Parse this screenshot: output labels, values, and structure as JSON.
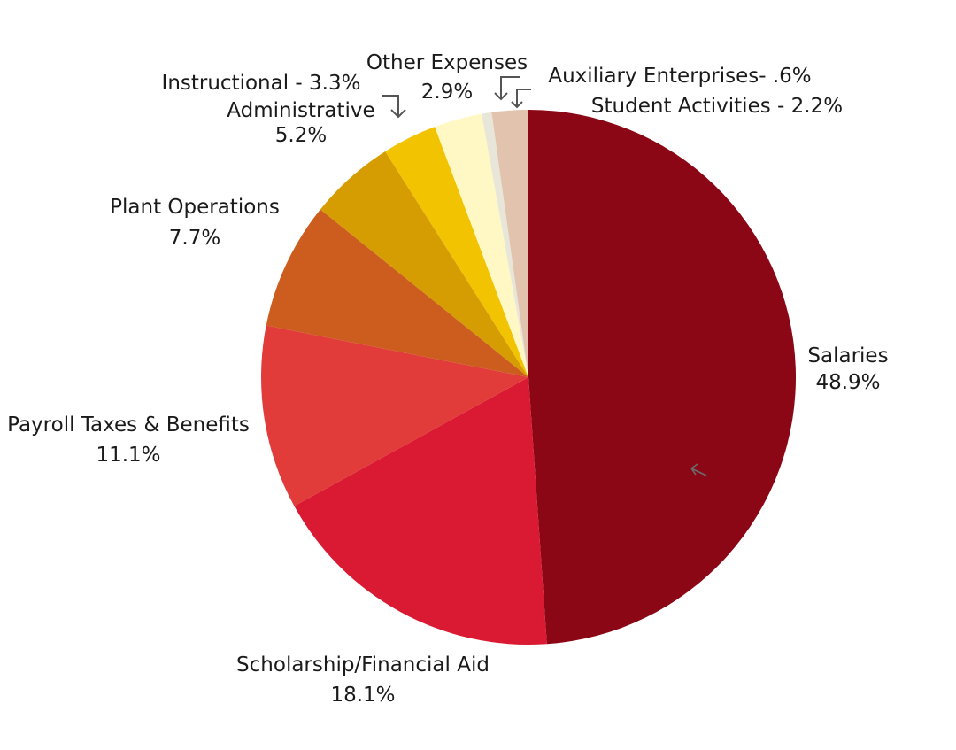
{
  "chart_data": {
    "type": "pie",
    "title": "",
    "start": "12 o'clock",
    "direction": "clockwise",
    "unit": "%",
    "slices": [
      {
        "name": "Salaries",
        "value": 48.9,
        "color": "#8B0716",
        "label_line1": "Salaries",
        "label_line2": "48.9%"
      },
      {
        "name": "Scholarship/Financial Aid",
        "value": 18.1,
        "color": "#DA1A32",
        "label_line1": "Scholarship/Financial Aid",
        "label_line2": "18.1%"
      },
      {
        "name": "Payroll Taxes & Benefits",
        "value": 11.1,
        "color": "#E13C3A",
        "label_line1": "Payroll Taxes & Benefits",
        "label_line2": "11.1%"
      },
      {
        "name": "Plant Operations",
        "value": 7.7,
        "color": "#CD5D1F",
        "label_line1": "Plant Operations",
        "label_line2": "7.7%"
      },
      {
        "name": "Administrative",
        "value": 5.2,
        "color": "#D59D02",
        "label_line1": "Administrative",
        "label_line2": "5.2%"
      },
      {
        "name": "Instructional",
        "value": 3.3,
        "color": "#F2C300",
        "label_line1": "Instructional - 3.3%",
        "label_line2": ""
      },
      {
        "name": "Other Expenses",
        "value": 2.9,
        "color": "#FFF8C4",
        "label_line1": "Other Expenses",
        "label_line2": "2.9%"
      },
      {
        "name": "Auxiliary Enterprises",
        "value": 0.6,
        "color": "#E8E6D8",
        "label_line1": "Auxiliary Enterprises- .6%",
        "label_line2": ""
      },
      {
        "name": "Student Activities",
        "value": 2.2,
        "color": "#E2C4AE",
        "label_line1": "Student Activities - 2.2%",
        "label_line2": ""
      }
    ]
  }
}
